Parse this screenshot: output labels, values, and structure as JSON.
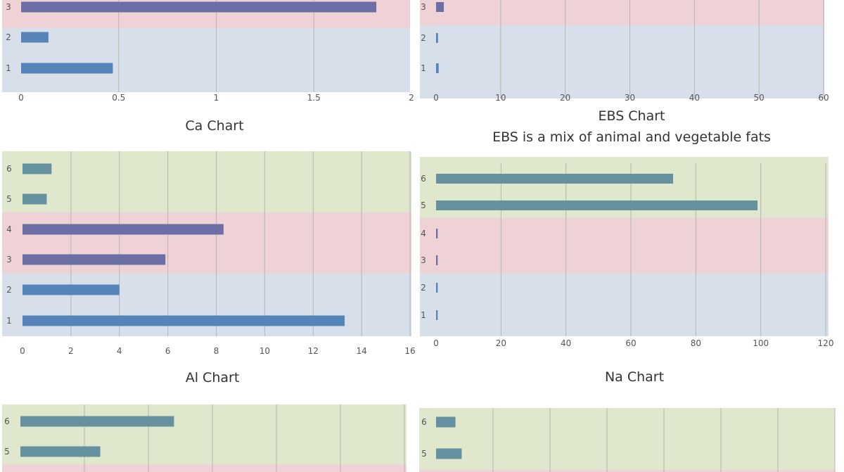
{
  "chart_data": [
    {
      "type": "bar",
      "orientation": "horizontal",
      "title": "",
      "categories": [
        "1",
        "2",
        "3"
      ],
      "values": [
        0.47,
        0.14,
        1.82
      ],
      "xlim": [
        0,
        2
      ],
      "xticks": [
        "0",
        "0.5",
        "1",
        "1.5",
        "2"
      ],
      "grid": true,
      "legend": "none"
    },
    {
      "type": "bar",
      "orientation": "horizontal",
      "title": "",
      "categories": [
        "1",
        "2",
        "3"
      ],
      "values": [
        0.4,
        0.3,
        1.2
      ],
      "xlim": [
        0,
        60
      ],
      "xticks": [
        "0",
        "10",
        "20",
        "30",
        "40",
        "50",
        "60"
      ],
      "grid": true,
      "legend": "none"
    },
    {
      "type": "bar",
      "orientation": "horizontal",
      "title": "Ca Chart",
      "categories": [
        "1",
        "2",
        "3",
        "4",
        "5",
        "6"
      ],
      "values": [
        13.3,
        4.0,
        5.9,
        8.3,
        1.0,
        1.2
      ],
      "xlim": [
        0,
        16
      ],
      "xticks": [
        "0",
        "2",
        "4",
        "6",
        "8",
        "10",
        "12",
        "14",
        "16"
      ],
      "grid": true,
      "legend": "none"
    },
    {
      "type": "bar",
      "orientation": "horizontal",
      "title": "EBS Chart",
      "subtitle": "EBS is a mix of animal and vegetable fats",
      "categories": [
        "1",
        "2",
        "3",
        "4",
        "5",
        "6"
      ],
      "values": [
        0.5,
        0.5,
        0.5,
        0.5,
        99,
        73
      ],
      "xlim": [
        0,
        120
      ],
      "xticks": [
        "0",
        "20",
        "40",
        "60",
        "80",
        "100",
        "120"
      ],
      "grid": true,
      "legend": "none"
    },
    {
      "type": "bar",
      "orientation": "horizontal",
      "title": "Al Chart",
      "categories": [
        "5",
        "6"
      ],
      "values": [
        2.6,
        5.0
      ],
      "xlim": [
        0,
        12.5
      ],
      "xticks": [],
      "grid": true,
      "legend": "none"
    },
    {
      "type": "bar",
      "orientation": "horizontal",
      "title": "Na Chart",
      "categories": [
        "5",
        "6"
      ],
      "values": [
        0.45,
        0.34
      ],
      "xlim": [
        0,
        7
      ],
      "xticks": [],
      "grid": true,
      "legend": "none"
    }
  ],
  "colors": {
    "band_blue": "#d7e0ea",
    "band_pink": "#efd2d6",
    "band_green": "#dfe8cc",
    "bar_blue": "#5683b8",
    "bar_purple": "#6b6fa3",
    "bar_teal": "#66929f",
    "grid": "#b5b5b5"
  }
}
